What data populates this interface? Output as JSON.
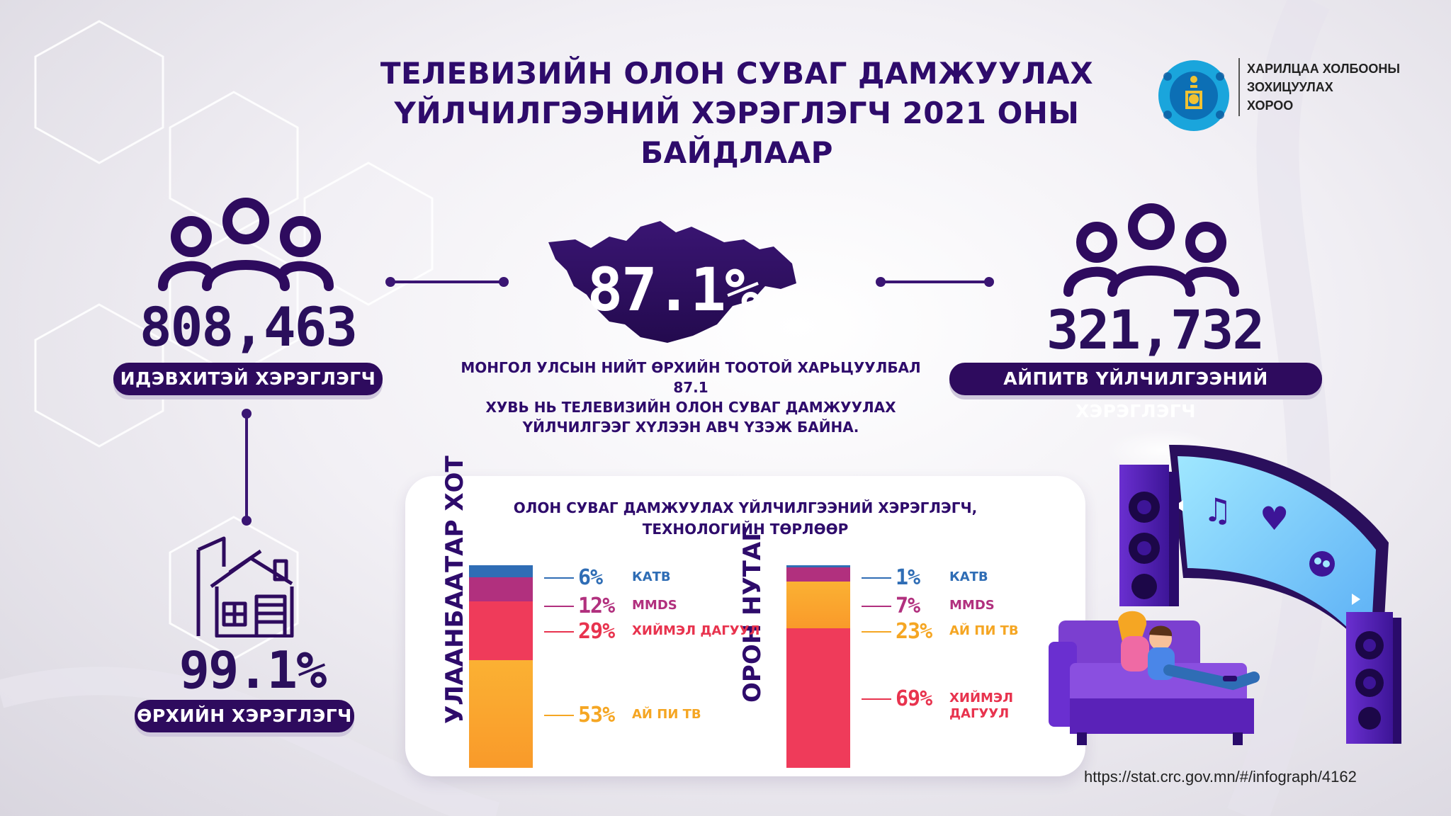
{
  "title": {
    "line1": "ТЕЛЕВИЗИЙН ОЛОН СУВАГ ДАМЖУУЛАХ",
    "line2": "ҮЙЛЧИЛГЭЭНИЙ ХЭРЭГЛЭГЧ 2021 ОНЫ БАЙДЛААР"
  },
  "logo": {
    "line1": "ХАРИЛЦАА ХОЛБООНЫ",
    "line2": "ЗОХИЦУУЛАХ",
    "line3": "ХОРОО"
  },
  "stats": {
    "active": {
      "value": "808,463",
      "label": "ИДЭВХИТЭЙ ХЭРЭГЛЭГЧ"
    },
    "iptv": {
      "value": "321,732",
      "label": "АЙПИТВ ҮЙЛЧИЛГЭЭНИЙ ХЭРЭГЛЭГЧ"
    },
    "household": {
      "value": "99.1%",
      "label": "ӨРХИЙН ХЭРЭГЛЭГЧ"
    },
    "coverage": {
      "value": "87.1%"
    }
  },
  "description": {
    "line1": "МОНГОЛ УЛСЫН НИЙТ ӨРХИЙН ТООТОЙ ХАРЬЦУУЛБАЛ 87.1",
    "line2": "ХУВЬ НЬ ТЕЛЕВИЗИЙН ОЛОН СУВАГ ДАМЖУУЛАХ",
    "line3": "ҮЙЛЧИЛГЭЭГ  ХҮЛЭЭН АВЧ ҮЗЭЖ БАЙНА."
  },
  "chart_data": {
    "type": "bar",
    "stacked": true,
    "title": "ОЛОН СУВАГ ДАМЖУУЛАХ ҮЙЛЧИЛГЭЭНИЙ ХЭРЭГЛЭГЧ,",
    "subtitle": "ТЕХНОЛОГИЙН ТӨРЛӨӨР",
    "unit": "%",
    "bars": [
      {
        "name": "УЛААНБААТАР ХОТ",
        "segments": [
          {
            "label": "КАТВ",
            "value": 6,
            "pct_text": "6%",
            "color": "#2f6db5",
            "label_color": "#2f6db5"
          },
          {
            "label": "MMDS",
            "value": 12,
            "pct_text": "12%",
            "color": "#b1307e",
            "label_color": "#b1307e"
          },
          {
            "label": "ХИЙМЭЛ ДАГУУЛ",
            "value": 29,
            "pct_text": "29%",
            "color": "#ef3b5a",
            "label_color": "#e8334e"
          },
          {
            "label": "АЙ ПИ ТВ",
            "value": 53,
            "pct_text": "53%",
            "color": "#fbb133",
            "label_color": "#f5a623"
          }
        ]
      },
      {
        "name": "ОРОН НУТАГ",
        "segments": [
          {
            "label": "КАТВ",
            "value": 1,
            "pct_text": "1%",
            "color": "#2f6db5",
            "label_color": "#2f6db5"
          },
          {
            "label": "MMDS",
            "value": 7,
            "pct_text": "7%",
            "color": "#b1307e",
            "label_color": "#b1307e"
          },
          {
            "label": "АЙ ПИ ТВ",
            "value": 23,
            "pct_text": "23%",
            "color": "#fbb133",
            "label_color": "#f5a623"
          },
          {
            "label": "ХИЙМЭЛ ДАГУУЛ",
            "value": 69,
            "pct_text": "69%",
            "color": "#ef3b5a",
            "label_color": "#e8334e"
          }
        ]
      }
    ]
  },
  "source": "https://stat.crc.gov.mn/#/infograph/4162",
  "colors": {
    "primary": "#2e0b5e",
    "background": "#f2f0f5",
    "purple_accent": "#7b3fd0"
  }
}
